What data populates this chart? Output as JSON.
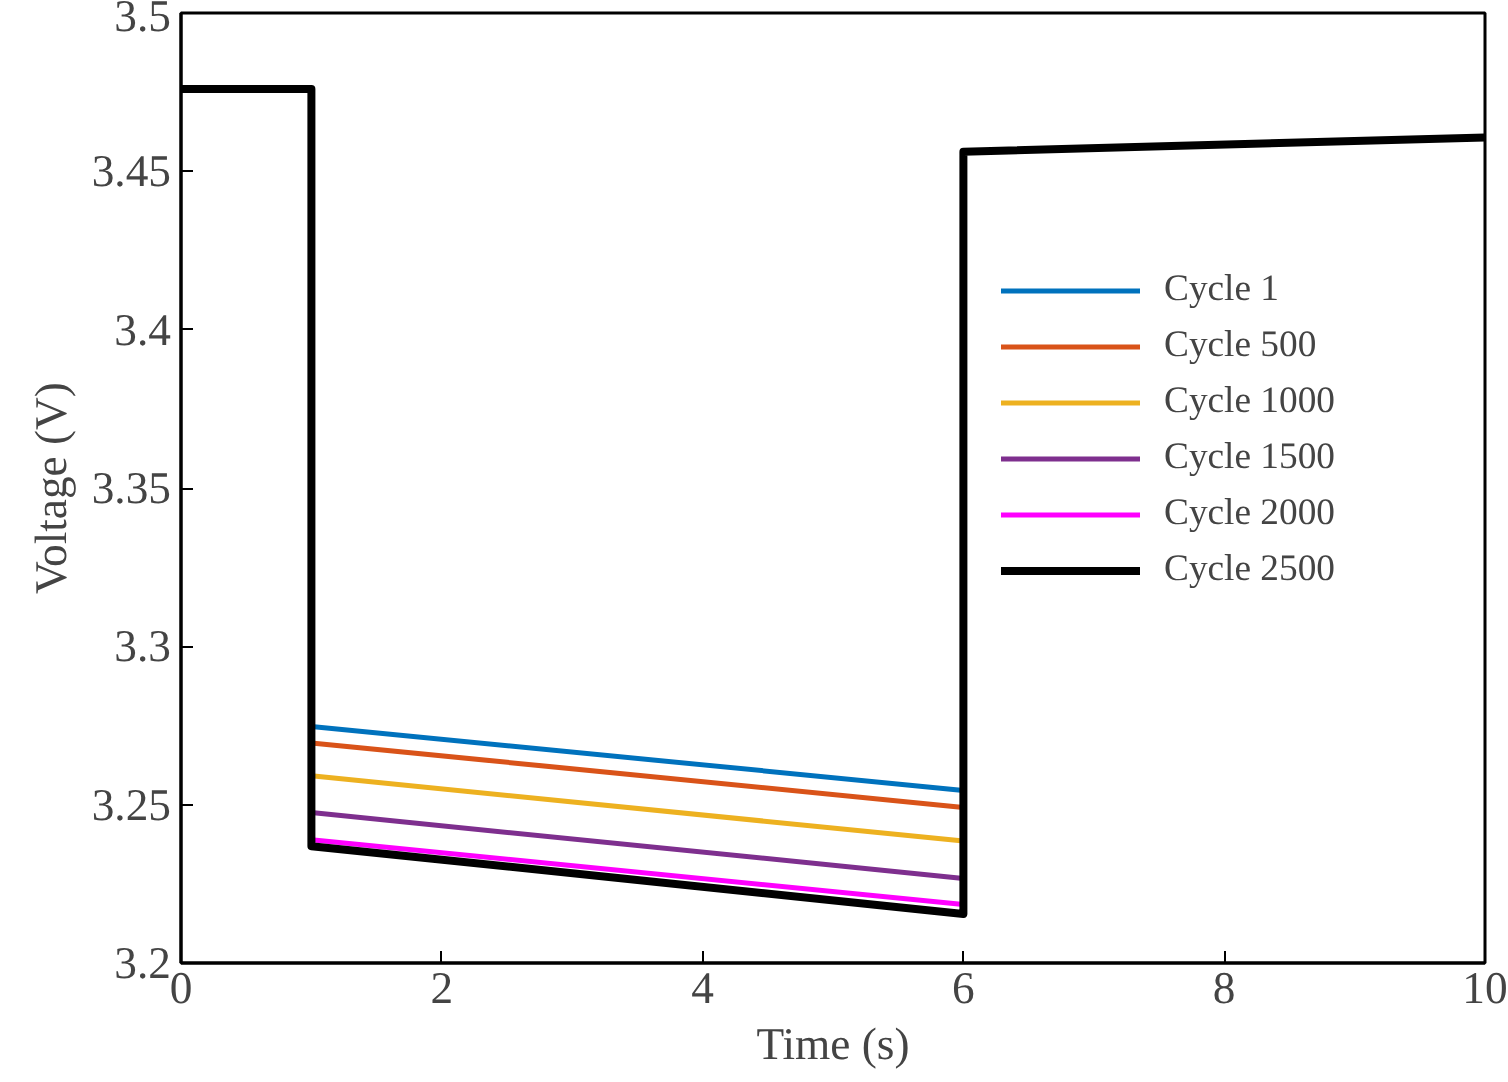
{
  "chart_data": {
    "type": "line",
    "xlabel": "Time (s)",
    "ylabel": "Voltage (V)",
    "xlim": [
      0,
      10
    ],
    "ylim": [
      3.2,
      3.5
    ],
    "xticks": [
      0,
      2,
      4,
      6,
      8,
      10
    ],
    "yticks": [
      3.2,
      3.25,
      3.3,
      3.35,
      3.4,
      3.45,
      3.5
    ],
    "grid": false,
    "legend": "right",
    "line_style": "solid",
    "marker": "none",
    "x": [
      0,
      1,
      1,
      6,
      6,
      10
    ],
    "series": [
      {
        "name": "Cycle 1",
        "color": "#0072bd",
        "values": [
          null,
          null,
          3.2747,
          3.2545,
          null,
          null
        ]
      },
      {
        "name": "Cycle 500",
        "color": "#d95319",
        "values": [
          null,
          null,
          3.2695,
          3.2491,
          null,
          null
        ]
      },
      {
        "name": "Cycle 1000",
        "color": "#edb120",
        "values": [
          null,
          null,
          3.2591,
          3.2385,
          null,
          null
        ]
      },
      {
        "name": "Cycle 1500",
        "color": "#7e2f8e",
        "values": [
          null,
          null,
          3.2475,
          3.2267,
          null,
          null
        ]
      },
      {
        "name": "Cycle 2000",
        "color": "#ff00ff",
        "values": [
          null,
          null,
          3.2389,
          3.2185,
          null,
          null
        ]
      },
      {
        "name": "Cycle 2500",
        "color": "#000000",
        "values": [
          3.476,
          3.476,
          3.2369,
          3.2155,
          3.4562,
          3.4607
        ]
      }
    ]
  }
}
